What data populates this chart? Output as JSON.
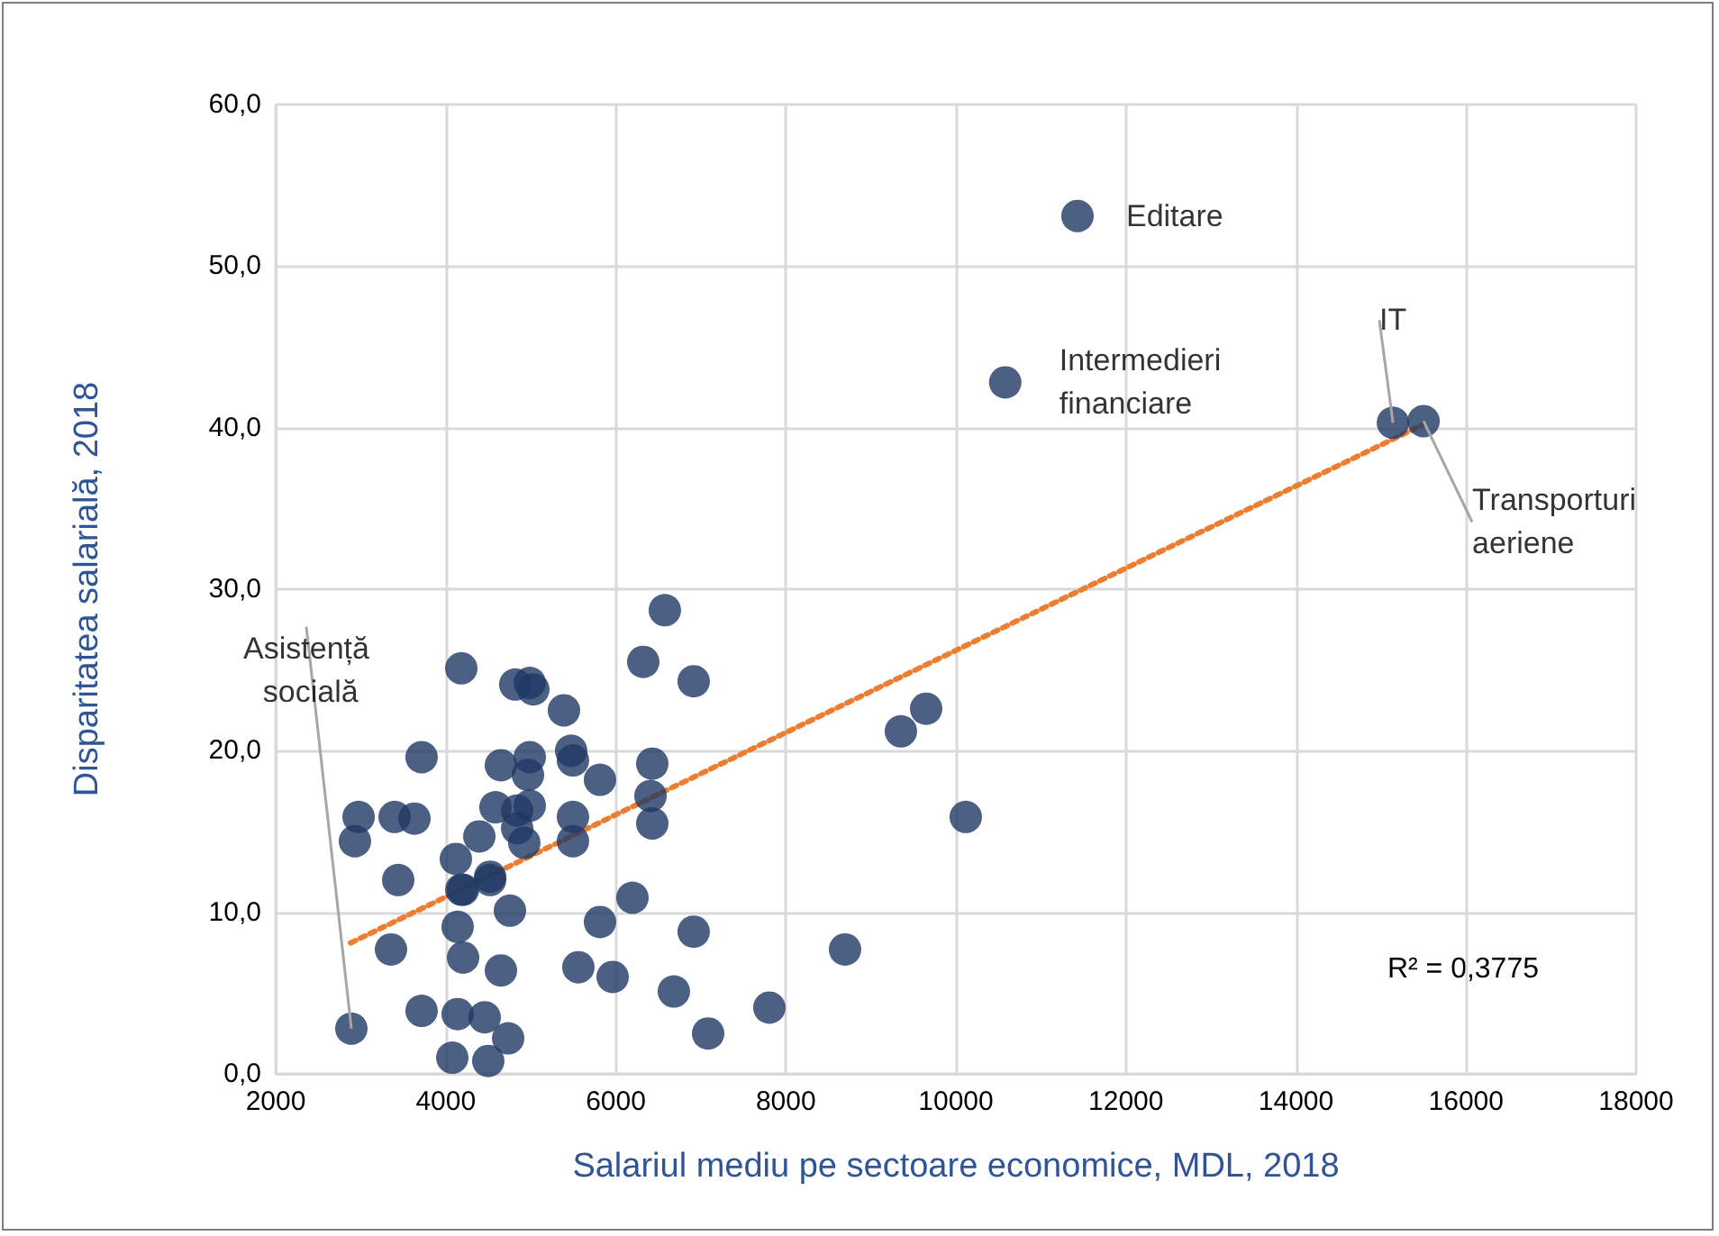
{
  "chart_data": {
    "type": "scatter",
    "xlabel": "Salariul mediu pe sectoare economice, MDL, 2018",
    "ylabel": "Disparitatea salarială, 2018",
    "xlim": [
      2000,
      18000
    ],
    "xticks": [
      2000,
      4000,
      6000,
      8000,
      10000,
      12000,
      14000,
      16000,
      18000
    ],
    "ylim": [
      0,
      60
    ],
    "yticks": [
      {
        "value": 0,
        "label": "0,0"
      },
      {
        "value": 10,
        "label": "10,0"
      },
      {
        "value": 20,
        "label": "20,0"
      },
      {
        "value": 30,
        "label": "30,0"
      },
      {
        "value": 40,
        "label": "40,0"
      },
      {
        "value": 50,
        "label": "50,0"
      },
      {
        "value": 60,
        "label": "60,0"
      }
    ],
    "grid": true,
    "marker": "circle",
    "series": [
      {
        "color": "#1f3864",
        "x": [
          2890,
          2975,
          2932,
          3356,
          3399,
          3632,
          3716,
          3441,
          3716,
          4077,
          4119,
          4140,
          4204,
          4140,
          4183,
          4204,
          4522,
          4395,
          4522,
          4458,
          4500,
          4649,
          4585,
          4649,
          4734,
          4755,
          4818,
          4988,
          5030,
          5390,
          6577,
          6323,
          6916,
          4988,
          4967,
          5475,
          5496,
          5814,
          6429,
          6408,
          6429,
          4840,
          4988,
          4840,
          4924,
          5496,
          5496,
          4183,
          6196,
          5814,
          6916,
          5560,
          5963,
          6683,
          7086,
          9353,
          9650,
          10116,
          8696,
          7806,
          11430,
          10580,
          15140,
          15500
        ],
        "values": [
          2.8,
          15.9,
          14.4,
          7.7,
          15.9,
          15.8,
          19.6,
          12.0,
          3.9,
          1.0,
          13.3,
          9.1,
          7.2,
          3.7,
          25.1,
          11.4,
          12.2,
          14.7,
          12.0,
          3.5,
          0.8,
          6.4,
          16.5,
          19.1,
          2.2,
          10.1,
          24.1,
          24.2,
          23.8,
          22.5,
          28.7,
          25.5,
          24.3,
          19.6,
          18.5,
          20.0,
          19.4,
          18.2,
          19.2,
          17.2,
          15.5,
          16.3,
          16.6,
          15.2,
          14.3,
          15.9,
          14.4,
          11.4,
          10.9,
          9.4,
          8.8,
          6.6,
          6.0,
          5.1,
          2.5,
          21.2,
          22.6,
          15.9,
          7.7,
          4.1,
          53.1,
          42.8,
          40.3,
          40.4
        ]
      },
      {
        "type": "line",
        "color": "#ed7d31",
        "line_style": "dotted",
        "marker": "none",
        "x": [
          2880,
          15500
        ],
        "values": [
          8.1,
          40.2
        ]
      }
    ],
    "annotations": [
      {
        "text": "Editare",
        "x": 11430,
        "y": 53.1
      },
      {
        "text": "Intermedieri financiare",
        "x": 10580,
        "y": 42.8
      },
      {
        "text": "IT",
        "x": 15140,
        "y": 40.3
      },
      {
        "text": "Transporturi aeriene",
        "x": 15500,
        "y": 40.4
      },
      {
        "text": "Asistență socială",
        "x": 2890,
        "y": 2.8
      },
      "R² = 0,3775"
    ]
  }
}
